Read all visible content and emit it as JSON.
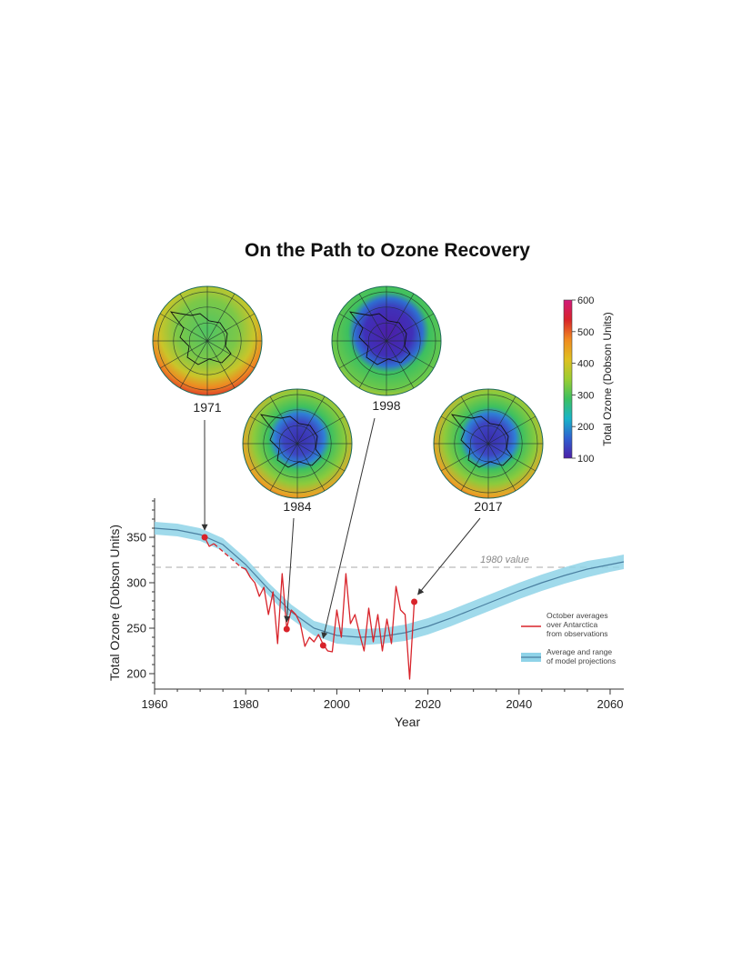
{
  "title": "On the Path to Ozone Recovery",
  "maps": [
    {
      "year": "1971",
      "ozone_level": "normal"
    },
    {
      "year": "1984",
      "ozone_level": "depleted"
    },
    {
      "year": "1998",
      "ozone_level": "severely-depleted"
    },
    {
      "year": "2017",
      "ozone_level": "depleted"
    }
  ],
  "colorbar": {
    "title": "Total Ozone (Dobson Units)",
    "ticks": [
      100,
      200,
      300,
      400,
      500,
      600
    ],
    "colors": [
      "#4b1fa8",
      "#2f5fd0",
      "#19b4c8",
      "#3cc060",
      "#9acd32",
      "#e0c020",
      "#f08a20",
      "#d8232a",
      "#d1197a"
    ]
  },
  "chart_data": {
    "type": "line",
    "xlabel": "Year",
    "ylabel": "Total Ozone (Dobson Units)",
    "xlim": [
      1960,
      2063
    ],
    "ylim": [
      183,
      393
    ],
    "xticks": [
      1960,
      1980,
      2000,
      2020,
      2040,
      2060
    ],
    "yticks": [
      200,
      250,
      300,
      350
    ],
    "reference_line": {
      "label": "1980 value",
      "value": 317
    },
    "series": [
      {
        "name": "October averages over Antarctica from observations",
        "color": "#d8232a",
        "x": [
          1971,
          1972,
          1973,
          1979,
          1980,
          1981,
          1982,
          1983,
          1984,
          1985,
          1986,
          1987,
          1988,
          1989,
          1990,
          1991,
          1992,
          1993,
          1994,
          1995,
          1996,
          1997,
          1998,
          1999,
          2000,
          2001,
          2002,
          2003,
          2004,
          2005,
          2006,
          2007,
          2008,
          2009,
          2010,
          2011,
          2012,
          2013,
          2014,
          2015,
          2016,
          2017
        ],
        "y": [
          350,
          340,
          343,
          317,
          315,
          306,
          300,
          285,
          295,
          265,
          290,
          233,
          310,
          250,
          270,
          265,
          255,
          230,
          240,
          235,
          243,
          232,
          225,
          224,
          270,
          240,
          310,
          255,
          265,
          244,
          225,
          272,
          235,
          265,
          225,
          260,
          233,
          296,
          270,
          265,
          194,
          279
        ],
        "gaps": [
          [
            1973,
            1979
          ]
        ],
        "highlighted": [
          {
            "year": 1971,
            "value": 350
          },
          {
            "year": 1989,
            "value": 249
          },
          {
            "year": 1997,
            "value": 231
          },
          {
            "year": 2017,
            "value": 279
          }
        ]
      },
      {
        "name": "Average and range of model projections",
        "color": "#4a7fa0",
        "band_color": "#8fd3e8",
        "x": [
          1960,
          1965,
          1970,
          1975,
          1980,
          1985,
          1990,
          1995,
          2000,
          2005,
          2010,
          2015,
          2020,
          2025,
          2030,
          2035,
          2040,
          2045,
          2050,
          2055,
          2060,
          2063
        ],
        "y": [
          360,
          358,
          353,
          342,
          320,
          293,
          268,
          250,
          242,
          240,
          241,
          245,
          252,
          261,
          271,
          281,
          291,
          300,
          308,
          315,
          320,
          323
        ],
        "lower": [
          353,
          351,
          346,
          335,
          313,
          286,
          260,
          242,
          233,
          231,
          233,
          236,
          243,
          252,
          262,
          272,
          282,
          291,
          299,
          306,
          312,
          315
        ],
        "upper": [
          367,
          365,
          360,
          349,
          327,
          300,
          276,
          258,
          251,
          249,
          250,
          254,
          261,
          270,
          280,
          290,
          300,
          309,
          317,
          324,
          328,
          331
        ]
      }
    ],
    "annotations": [
      {
        "label": "1971",
        "points_to_year": 1971
      },
      {
        "label": "1984",
        "points_to_year": 1989
      },
      {
        "label": "1998",
        "points_to_year": 1997
      },
      {
        "label": "2017",
        "points_to_year": 2017
      }
    ],
    "legend_position": "right"
  }
}
